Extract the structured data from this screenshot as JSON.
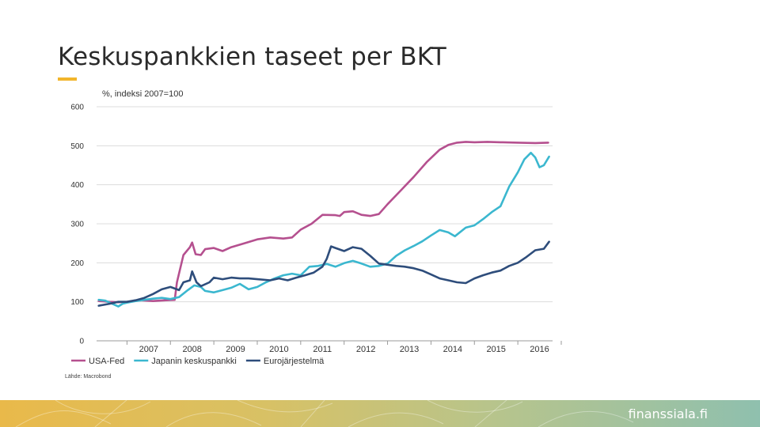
{
  "slide": {
    "title": "Keskuspankkien taseet per BKT",
    "accent_color": "#f2b52b",
    "brand": "finanssiala.fi"
  },
  "chart_data": {
    "type": "line",
    "subtitle": "%, indeksi 2007=100",
    "source": "Lähde: Macrobond",
    "x_unit": "year",
    "xlim": [
      2006.3,
      2016.8
    ],
    "ylim": [
      0,
      600
    ],
    "yticks": [
      0,
      100,
      200,
      300,
      400,
      500,
      600
    ],
    "xticks": [
      "2007",
      "2008",
      "2009",
      "2010",
      "2011",
      "2012",
      "2013",
      "2014",
      "2015",
      "2016"
    ],
    "grid": true,
    "legend_position": "bottom",
    "series": [
      {
        "name": "USA-Fed",
        "color": "#b5508f",
        "points": [
          [
            2006.35,
            102
          ],
          [
            2006.6,
            100
          ],
          [
            2006.8,
            99
          ],
          [
            2007.0,
            100
          ],
          [
            2007.3,
            104
          ],
          [
            2007.6,
            102
          ],
          [
            2007.9,
            104
          ],
          [
            2008.1,
            105
          ],
          [
            2008.15,
            150
          ],
          [
            2008.3,
            220
          ],
          [
            2008.45,
            240
          ],
          [
            2008.5,
            252
          ],
          [
            2008.58,
            222
          ],
          [
            2008.7,
            220
          ],
          [
            2008.8,
            235
          ],
          [
            2009.0,
            238
          ],
          [
            2009.2,
            230
          ],
          [
            2009.4,
            240
          ],
          [
            2009.7,
            250
          ],
          [
            2010.0,
            260
          ],
          [
            2010.3,
            265
          ],
          [
            2010.6,
            262
          ],
          [
            2010.8,
            265
          ],
          [
            2011.0,
            285
          ],
          [
            2011.25,
            300
          ],
          [
            2011.5,
            323
          ],
          [
            2011.8,
            322
          ],
          [
            2011.9,
            320
          ],
          [
            2012.0,
            330
          ],
          [
            2012.2,
            332
          ],
          [
            2012.4,
            323
          ],
          [
            2012.6,
            320
          ],
          [
            2012.8,
            325
          ],
          [
            2013.0,
            350
          ],
          [
            2013.3,
            385
          ],
          [
            2013.6,
            420
          ],
          [
            2013.9,
            458
          ],
          [
            2014.2,
            490
          ],
          [
            2014.4,
            502
          ],
          [
            2014.6,
            508
          ],
          [
            2014.8,
            510
          ],
          [
            2015.0,
            509
          ],
          [
            2015.3,
            510
          ],
          [
            2015.6,
            509
          ],
          [
            2016.0,
            508
          ],
          [
            2016.4,
            507
          ],
          [
            2016.7,
            508
          ]
        ]
      },
      {
        "name": "Japanin keskuspankki",
        "color": "#3bb7cf",
        "points": [
          [
            2006.35,
            105
          ],
          [
            2006.5,
            103
          ],
          [
            2006.7,
            93
          ],
          [
            2006.8,
            88
          ],
          [
            2006.9,
            95
          ],
          [
            2007.0,
            98
          ],
          [
            2007.2,
            102
          ],
          [
            2007.4,
            105
          ],
          [
            2007.6,
            108
          ],
          [
            2007.8,
            110
          ],
          [
            2008.0,
            107
          ],
          [
            2008.2,
            112
          ],
          [
            2008.4,
            130
          ],
          [
            2008.55,
            142
          ],
          [
            2008.7,
            138
          ],
          [
            2008.8,
            128
          ],
          [
            2009.0,
            124
          ],
          [
            2009.2,
            130
          ],
          [
            2009.4,
            136
          ],
          [
            2009.6,
            146
          ],
          [
            2009.8,
            132
          ],
          [
            2010.0,
            138
          ],
          [
            2010.2,
            150
          ],
          [
            2010.4,
            160
          ],
          [
            2010.6,
            168
          ],
          [
            2010.8,
            172
          ],
          [
            2011.0,
            168
          ],
          [
            2011.2,
            190
          ],
          [
            2011.4,
            192
          ],
          [
            2011.6,
            197
          ],
          [
            2011.8,
            190
          ],
          [
            2012.0,
            199
          ],
          [
            2012.2,
            205
          ],
          [
            2012.4,
            198
          ],
          [
            2012.6,
            190
          ],
          [
            2012.8,
            192
          ],
          [
            2013.0,
            198
          ],
          [
            2013.2,
            218
          ],
          [
            2013.4,
            232
          ],
          [
            2013.6,
            243
          ],
          [
            2013.8,
            255
          ],
          [
            2014.0,
            270
          ],
          [
            2014.2,
            284
          ],
          [
            2014.4,
            278
          ],
          [
            2014.55,
            268
          ],
          [
            2014.8,
            290
          ],
          [
            2015.0,
            296
          ],
          [
            2015.2,
            312
          ],
          [
            2015.4,
            330
          ],
          [
            2015.6,
            345
          ],
          [
            2015.8,
            395
          ],
          [
            2016.0,
            432
          ],
          [
            2016.15,
            465
          ],
          [
            2016.3,
            482
          ],
          [
            2016.4,
            470
          ],
          [
            2016.5,
            445
          ],
          [
            2016.6,
            450
          ],
          [
            2016.72,
            472
          ]
        ]
      },
      {
        "name": "Eurojärjestelmä",
        "color": "#2e4d7b",
        "points": [
          [
            2006.35,
            90
          ],
          [
            2006.6,
            95
          ],
          [
            2006.8,
            100
          ],
          [
            2007.0,
            100
          ],
          [
            2007.2,
            104
          ],
          [
            2007.4,
            110
          ],
          [
            2007.6,
            120
          ],
          [
            2007.8,
            132
          ],
          [
            2008.0,
            138
          ],
          [
            2008.2,
            130
          ],
          [
            2008.3,
            150
          ],
          [
            2008.45,
            155
          ],
          [
            2008.5,
            178
          ],
          [
            2008.6,
            150
          ],
          [
            2008.7,
            140
          ],
          [
            2008.9,
            150
          ],
          [
            2009.0,
            162
          ],
          [
            2009.2,
            158
          ],
          [
            2009.4,
            162
          ],
          [
            2009.6,
            160
          ],
          [
            2009.8,
            160
          ],
          [
            2010.0,
            158
          ],
          [
            2010.3,
            155
          ],
          [
            2010.5,
            160
          ],
          [
            2010.7,
            155
          ],
          [
            2010.9,
            162
          ],
          [
            2011.1,
            168
          ],
          [
            2011.3,
            175
          ],
          [
            2011.5,
            190
          ],
          [
            2011.6,
            210
          ],
          [
            2011.7,
            242
          ],
          [
            2011.8,
            238
          ],
          [
            2012.0,
            230
          ],
          [
            2012.2,
            240
          ],
          [
            2012.4,
            236
          ],
          [
            2012.6,
            218
          ],
          [
            2012.8,
            198
          ],
          [
            2013.0,
            195
          ],
          [
            2013.2,
            192
          ],
          [
            2013.4,
            190
          ],
          [
            2013.6,
            186
          ],
          [
            2013.8,
            180
          ],
          [
            2014.0,
            170
          ],
          [
            2014.2,
            160
          ],
          [
            2014.4,
            155
          ],
          [
            2014.6,
            150
          ],
          [
            2014.8,
            148
          ],
          [
            2015.0,
            160
          ],
          [
            2015.2,
            168
          ],
          [
            2015.4,
            175
          ],
          [
            2015.6,
            180
          ],
          [
            2015.8,
            192
          ],
          [
            2016.0,
            200
          ],
          [
            2016.2,
            215
          ],
          [
            2016.4,
            232
          ],
          [
            2016.6,
            236
          ],
          [
            2016.72,
            254
          ]
        ]
      }
    ]
  }
}
